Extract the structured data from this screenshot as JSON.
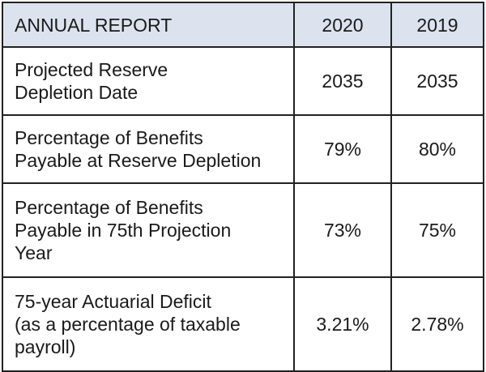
{
  "table": {
    "header": {
      "label": "ANNUAL REPORT",
      "years": [
        "2020",
        "2019"
      ]
    },
    "rows": [
      {
        "label_lines": [
          "Projected Reserve",
          "Depletion Date"
        ],
        "values": [
          "2035",
          "2035"
        ]
      },
      {
        "label_lines": [
          "Percentage of Benefits",
          "Payable at Reserve Depletion"
        ],
        "values": [
          "79%",
          "80%"
        ]
      },
      {
        "label_lines": [
          "Percentage of Benefits",
          "Payable in 75th Projection",
          "Year"
        ],
        "values": [
          "73%",
          "75%"
        ]
      },
      {
        "label_lines": [
          "75-year Actuarial Deficit",
          "(as a percentage of taxable",
          "payroll)"
        ],
        "values": [
          "3.21%",
          "2.78%"
        ]
      }
    ],
    "colors": {
      "header_background": "#dce3ef",
      "border": "#222222",
      "text": "#1a1a1a"
    }
  }
}
